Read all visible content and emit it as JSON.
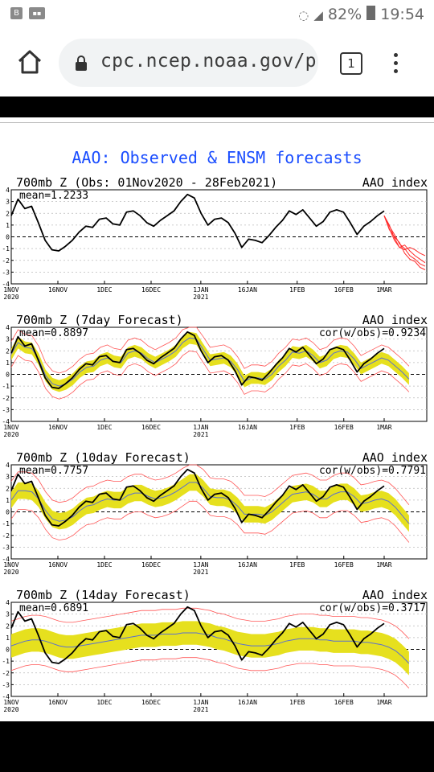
{
  "status_bar": {
    "left_icons": [
      "B",
      "signal-app"
    ],
    "battery_percent": "82%",
    "time": "19:54",
    "wifi_icon": "wifi-icon",
    "cell_icon": "cell-signal-icon",
    "battery_icon": "battery-icon"
  },
  "browser": {
    "url": "cpc.ncep.noaa.gov/prc",
    "tab_count": "1"
  },
  "page_title": "AAO: Observed & ENSM forecasts",
  "chart_data": [
    {
      "type": "line",
      "title": "700mb Z (Obs: 01Nov2020 - 28Feb2021)",
      "index_label": "AAO index",
      "mean_label": "mean=1.2233",
      "cor_label": "",
      "ylim": [
        -4,
        4
      ],
      "yticks": [
        "4",
        "3",
        "2",
        "1",
        "0",
        "-1",
        "-2",
        "-3",
        "-4"
      ],
      "xticks": [
        "1NOV",
        "16NOV",
        "1DEC",
        "16DEC",
        "1JAN",
        "16JAN",
        "1FEB",
        "16FEB",
        "1MAR"
      ],
      "year_labels": [
        "2020",
        "2021"
      ],
      "observed": [
        1.8,
        3.2,
        2.4,
        2.6,
        1.2,
        -0.3,
        -1.1,
        -1.2,
        -0.8,
        -0.3,
        0.4,
        0.9,
        0.8,
        1.5,
        1.6,
        1.1,
        1.0,
        2.1,
        2.2,
        1.8,
        1.2,
        0.9,
        1.4,
        1.8,
        2.2,
        3.0,
        3.6,
        3.3,
        2.0,
        1.0,
        1.5,
        1.6,
        1.2,
        0.3,
        -0.9,
        -0.2,
        -0.3,
        -0.5,
        0.1,
        0.8,
        1.4,
        2.2,
        1.9,
        2.3,
        1.6,
        0.9,
        1.3,
        2.1,
        2.3,
        2.1,
        1.2,
        0.2,
        0.9,
        1.3,
        1.8,
        2.2
      ],
      "forecast_members": [
        [
          1.8,
          0.9,
          0.2,
          -0.6,
          -1.0,
          -1.6,
          -1.9,
          -2.3,
          -2.5
        ],
        [
          1.8,
          0.6,
          0.0,
          -0.5,
          -1.4,
          -1.9,
          -2.1,
          -2.6,
          -2.8
        ],
        [
          1.8,
          1.0,
          -0.1,
          -0.9,
          -0.7,
          -1.2,
          -1.6,
          -1.9,
          -2.2
        ],
        [
          1.8,
          0.7,
          -0.3,
          -0.9,
          -1.1,
          -0.9,
          -1.1,
          -1.4,
          -1.6
        ]
      ]
    },
    {
      "type": "line",
      "title": "700mb Z (7day Forecast)",
      "index_label": "AAO index",
      "mean_label": "mean=0.8897",
      "cor_label": "cor(w/obs)=0.9234",
      "ylim": [
        -4,
        4
      ],
      "yticks": [
        "4",
        "3",
        "2",
        "1",
        "0",
        "-1",
        "-2",
        "-3",
        "-4"
      ],
      "xticks": [
        "1NOV",
        "16NOV",
        "1DEC",
        "16DEC",
        "1JAN",
        "16JAN",
        "1FEB",
        "16FEB",
        "1MAR"
      ],
      "year_labels": [
        "2020",
        "2021"
      ],
      "observed": [
        1.8,
        3.2,
        2.4,
        2.6,
        1.2,
        -0.3,
        -1.1,
        -1.2,
        -0.8,
        -0.3,
        0.4,
        0.9,
        0.8,
        1.5,
        1.6,
        1.1,
        1.0,
        2.1,
        2.2,
        1.8,
        1.2,
        0.9,
        1.4,
        1.8,
        2.2,
        3.0,
        3.6,
        3.3,
        2.0,
        1.0,
        1.5,
        1.6,
        1.2,
        0.3,
        -0.9,
        -0.2,
        -0.3,
        -0.5,
        0.1,
        0.8,
        1.4,
        2.2,
        1.9,
        2.3,
        1.6,
        0.9,
        1.3,
        2.1,
        2.3,
        2.1,
        1.2,
        0.2,
        0.9,
        1.3,
        1.8,
        2.2
      ],
      "ensemble_mean": [
        1.7,
        2.7,
        2.3,
        2.2,
        1.3,
        -0.1,
        -0.8,
        -1.0,
        -0.8,
        -0.4,
        0.2,
        0.6,
        0.7,
        1.2,
        1.4,
        1.1,
        1.0,
        1.8,
        2.0,
        1.8,
        1.3,
        1.0,
        1.3,
        1.6,
        2.0,
        2.7,
        3.1,
        3.0,
        2.1,
        1.2,
        1.3,
        1.4,
        1.1,
        0.4,
        -0.6,
        -0.3,
        -0.3,
        -0.4,
        0.0,
        0.7,
        1.2,
        1.9,
        1.8,
        2.0,
        1.6,
        1.0,
        1.2,
        1.8,
        2.0,
        1.9,
        1.3,
        0.5,
        0.8,
        1.1,
        1.4,
        1.2,
        0.7,
        0.2,
        -0.4
      ],
      "spread": 0.5,
      "envelope": 1.1
    },
    {
      "type": "line",
      "title": "700mb Z (10day Forecast)",
      "index_label": "AAO index",
      "mean_label": "mean=0.7757",
      "cor_label": "cor(w/obs)=0.7791",
      "ylim": [
        -4,
        4
      ],
      "yticks": [
        "4",
        "3",
        "2",
        "1",
        "0",
        "-1",
        "-2",
        "-3",
        "-4"
      ],
      "xticks": [
        "1NOV",
        "16NOV",
        "1DEC",
        "16DEC",
        "1JAN",
        "16JAN",
        "1FEB",
        "16FEB",
        "1MAR"
      ],
      "year_labels": [
        "2020",
        "2021"
      ],
      "observed": [
        1.8,
        3.2,
        2.4,
        2.6,
        1.2,
        -0.3,
        -1.1,
        -1.2,
        -0.8,
        -0.3,
        0.4,
        0.9,
        0.8,
        1.5,
        1.6,
        1.1,
        1.0,
        2.1,
        2.2,
        1.8,
        1.2,
        0.9,
        1.4,
        1.8,
        2.2,
        3.0,
        3.6,
        3.3,
        2.0,
        1.0,
        1.5,
        1.6,
        1.2,
        0.3,
        -0.9,
        -0.2,
        -0.3,
        -0.5,
        0.1,
        0.8,
        1.4,
        2.2,
        1.9,
        2.3,
        1.6,
        0.9,
        1.3,
        2.1,
        2.3,
        2.1,
        1.2,
        0.2,
        0.9,
        1.3,
        1.8,
        2.2
      ],
      "ensemble_mean": [
        1.0,
        1.8,
        1.8,
        1.7,
        1.1,
        0.1,
        -0.6,
        -0.8,
        -0.7,
        -0.4,
        0.1,
        0.5,
        0.6,
        0.9,
        1.1,
        1.0,
        1.0,
        1.4,
        1.6,
        1.6,
        1.3,
        1.1,
        1.2,
        1.4,
        1.7,
        2.1,
        2.5,
        2.5,
        2.0,
        1.3,
        1.2,
        1.2,
        1.0,
        0.5,
        -0.2,
        -0.2,
        -0.2,
        -0.3,
        0.0,
        0.5,
        1.0,
        1.5,
        1.6,
        1.7,
        1.5,
        1.1,
        1.1,
        1.5,
        1.7,
        1.7,
        1.3,
        0.7,
        0.8,
        1.0,
        1.1,
        0.9,
        0.4,
        -0.3,
        -1.0
      ],
      "spread": 0.7,
      "envelope": 1.6
    },
    {
      "type": "line",
      "title": "700mb Z (14day Forecast)",
      "index_label": "AAO index",
      "mean_label": "mean=0.6891",
      "cor_label": "cor(w/obs)=0.3717",
      "ylim": [
        -4,
        4
      ],
      "yticks": [
        "4",
        "3",
        "2",
        "1",
        "0",
        "-1",
        "-2",
        "-3",
        "-4"
      ],
      "xticks": [
        "1NOV",
        "16NOV",
        "1DEC",
        "16DEC",
        "1JAN",
        "16JAN",
        "1FEB",
        "16FEB",
        "1MAR"
      ],
      "year_labels": [
        "2020",
        "2021"
      ],
      "observed": [
        1.8,
        3.2,
        2.4,
        2.6,
        1.2,
        -0.3,
        -1.1,
        -1.2,
        -0.8,
        -0.3,
        0.4,
        0.9,
        0.8,
        1.5,
        1.6,
        1.1,
        1.0,
        2.1,
        2.2,
        1.8,
        1.2,
        0.9,
        1.4,
        1.8,
        2.2,
        3.0,
        3.6,
        3.3,
        2.0,
        1.0,
        1.5,
        1.6,
        1.2,
        0.3,
        -0.9,
        -0.2,
        -0.3,
        -0.5,
        0.1,
        0.8,
        1.4,
        2.2,
        1.9,
        2.3,
        1.6,
        0.9,
        1.3,
        2.1,
        2.3,
        2.1,
        1.2,
        0.2,
        0.9,
        1.3,
        1.8,
        2.2
      ],
      "ensemble_mean": [
        0.3,
        0.5,
        0.7,
        0.8,
        0.8,
        0.7,
        0.5,
        0.3,
        0.2,
        0.2,
        0.3,
        0.4,
        0.5,
        0.6,
        0.7,
        0.8,
        0.9,
        1.0,
        1.1,
        1.2,
        1.2,
        1.2,
        1.3,
        1.3,
        1.3,
        1.4,
        1.4,
        1.4,
        1.3,
        1.2,
        1.0,
        0.9,
        0.7,
        0.5,
        0.4,
        0.3,
        0.3,
        0.3,
        0.4,
        0.5,
        0.7,
        0.8,
        0.9,
        0.9,
        0.9,
        0.8,
        0.8,
        0.7,
        0.7,
        0.7,
        0.7,
        0.6,
        0.6,
        0.5,
        0.4,
        0.2,
        -0.1,
        -0.6,
        -1.2
      ],
      "spread": 1.0,
      "envelope": 2.1
    }
  ],
  "colors": {
    "observed": "#000000",
    "forecast": "#ff2a2a",
    "envelope": "#ff5555",
    "spread": "#e6e01e",
    "ensemble_mean": "#5a6fd0",
    "title": "#1a4dff"
  }
}
